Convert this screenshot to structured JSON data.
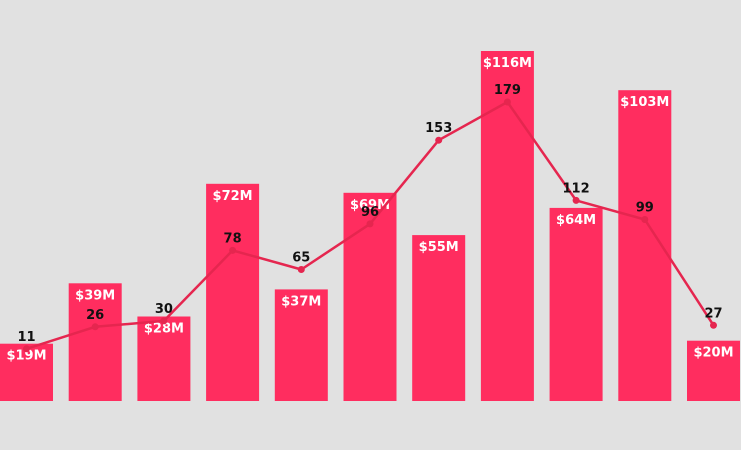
{
  "chart_data": {
    "type": "bar",
    "categories": [
      "",
      "",
      "",
      "",
      "",
      "",
      "",
      "",
      "",
      "",
      ""
    ],
    "series": [
      {
        "type": "bar",
        "values": [
          19,
          39,
          28,
          72,
          37,
          69,
          55,
          116,
          64,
          103,
          20
        ],
        "labels": [
          "$19M",
          "$39M",
          "$28M",
          "$72M",
          "$37M",
          "$69M",
          "$55M",
          "$116M",
          "$64M",
          "$103M",
          "$20M"
        ],
        "color": "#ff2d5f"
      },
      {
        "type": "line",
        "values": [
          11,
          26,
          30,
          78,
          65,
          96,
          153,
          179,
          112,
          99,
          27
        ],
        "labels": [
          "11",
          "26",
          "30",
          "78",
          "65",
          "96",
          "153",
          "179",
          "112",
          "99",
          "27"
        ],
        "color": "#e5264f"
      }
    ],
    "title": "",
    "xlabel": "",
    "ylabel": "",
    "grid": false,
    "legend": "none",
    "background": "#e1e1e1"
  }
}
